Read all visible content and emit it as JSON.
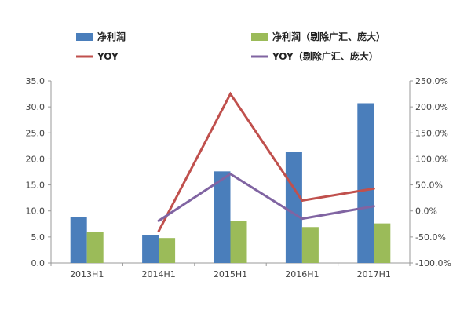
{
  "chart_data": {
    "type": "bar+line",
    "categories": [
      "2013H1",
      "2014H1",
      "2015H1",
      "2016H1",
      "2017H1"
    ],
    "series": [
      {
        "name": "净利润",
        "type": "bar",
        "axis": "left",
        "color": "#4a7ebb",
        "values": [
          8.8,
          5.4,
          17.6,
          21.3,
          30.7
        ]
      },
      {
        "name": "净利润（剔除广汇、庞大）",
        "type": "bar",
        "axis": "left",
        "color": "#9bbb59",
        "values": [
          5.9,
          4.8,
          8.1,
          6.9,
          7.6
        ]
      },
      {
        "name": "YOY",
        "type": "line",
        "axis": "right",
        "color": "#c0504d",
        "values": [
          null,
          -39.0,
          225.0,
          20.0,
          43.0
        ]
      },
      {
        "name": "YOY（剔除广汇、庞大）",
        "type": "line",
        "axis": "right",
        "color": "#8064a2",
        "values": [
          null,
          -19.0,
          71.0,
          -15.0,
          9.0
        ]
      }
    ],
    "y_left": {
      "ylim": [
        0,
        35
      ],
      "ticks": [
        "0.0",
        "5.0",
        "10.0",
        "15.0",
        "20.0",
        "25.0",
        "30.0",
        "35.0"
      ]
    },
    "y_right": {
      "ylim": [
        -100,
        250
      ],
      "ticks": [
        "-100.0%",
        "-50.0%",
        "0.0%",
        "50.0%",
        "100.0%",
        "150.0%",
        "200.0%",
        "250.0%"
      ]
    },
    "legend_position": "top",
    "grid": false
  }
}
